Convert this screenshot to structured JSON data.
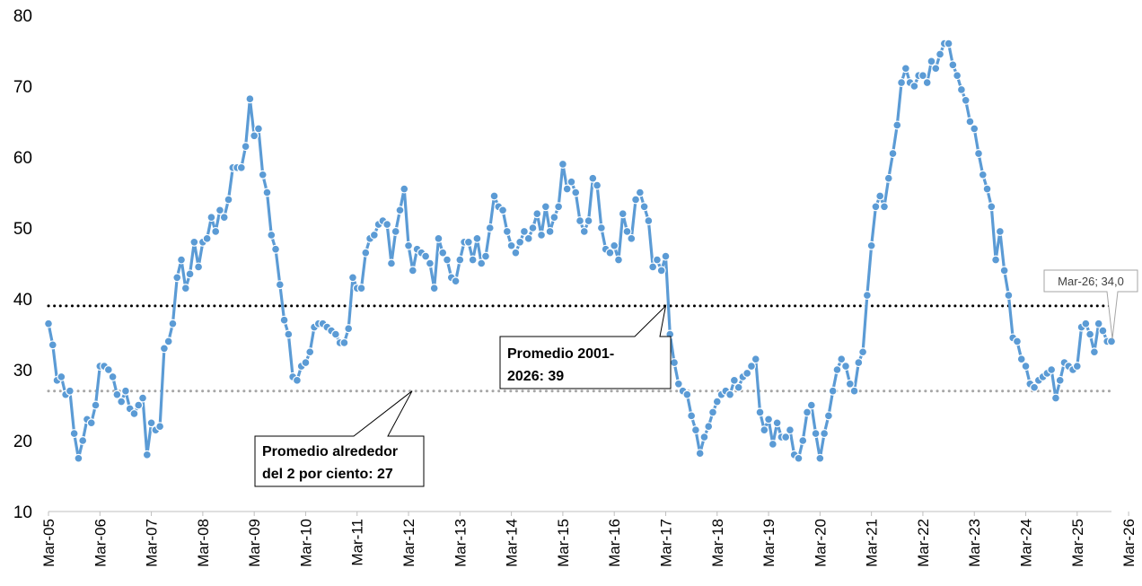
{
  "chart_data": {
    "type": "line",
    "title": "",
    "xlabel": "",
    "ylabel": "",
    "ylim": [
      10,
      80
    ],
    "yticks": [
      10,
      20,
      30,
      40,
      50,
      60,
      70,
      80
    ],
    "x_tick_labels": [
      "Mar-05",
      "Mar-06",
      "Mar-07",
      "Mar-08",
      "Mar-09",
      "Mar-10",
      "Mar-11",
      "Mar-12",
      "Mar-13",
      "Mar-14",
      "Mar-15",
      "Mar-16",
      "Mar-17",
      "Mar-18",
      "Mar-19",
      "Mar-20",
      "Mar-21",
      "Mar-22",
      "Mar-23",
      "Mar-24",
      "Mar-25",
      "Mar-26"
    ],
    "series": [
      {
        "color": "#5b9bd5",
        "values": [
          36.5,
          33.5,
          28.5,
          29,
          26.5,
          27,
          21,
          17.5,
          20,
          23,
          22.5,
          25,
          30.5,
          30.5,
          30,
          29,
          26.5,
          25.5,
          27,
          24.5,
          23.8,
          25,
          26,
          18,
          22.5,
          21.5,
          22,
          33,
          34,
          36.5,
          43,
          45.5,
          41.5,
          43.5,
          48,
          44.5,
          48,
          48.5,
          51.5,
          49.5,
          52.5,
          51.5,
          54,
          58.5,
          58.5,
          58.5,
          61.5,
          68.2,
          63,
          64,
          57.5,
          55,
          49,
          47,
          42,
          37,
          35,
          29,
          28.5,
          30.5,
          31,
          32.5,
          36,
          36.5,
          36.5,
          36,
          35.5,
          35,
          33.8,
          33.8,
          35.8,
          43,
          41.5,
          41.5,
          46.5,
          48.5,
          49,
          50.5,
          51,
          50.5,
          45,
          49.5,
          52.5,
          55.5,
          47.5,
          44,
          47,
          46.5,
          46,
          45,
          41.5,
          48.5,
          46.5,
          45.5,
          43,
          42.5,
          45.5,
          48,
          48,
          45.5,
          48.5,
          45,
          46,
          50,
          54.5,
          53,
          52.5,
          49.5,
          47.5,
          46.5,
          48,
          49.5,
          48.5,
          50,
          52,
          49,
          53,
          49.5,
          51.5,
          53,
          59,
          55.5,
          56.5,
          55,
          51,
          49.5,
          51,
          57,
          56,
          50,
          47,
          46.5,
          47.5,
          45.5,
          52,
          49.5,
          48.5,
          54,
          55,
          53,
          51,
          44.5,
          45.5,
          44,
          46,
          35,
          31,
          28,
          27,
          26.5,
          23.5,
          21.5,
          18.2,
          20.5,
          22,
          24,
          25.5,
          26.5,
          27,
          26.5,
          28.5,
          27.5,
          29,
          29.5,
          30.5,
          31.5,
          24,
          21.5,
          23,
          19.5,
          22.5,
          20.5,
          20.5,
          21.5,
          18,
          17.5,
          20,
          24,
          25,
          21,
          17.5,
          21,
          23.5,
          27,
          30,
          31.5,
          30.5,
          28,
          27,
          31,
          32.5,
          40.5,
          47.5,
          53,
          54.5,
          53,
          57,
          60.5,
          64.5,
          70.5,
          72.5,
          70.5,
          70,
          71.5,
          71.5,
          70.5,
          73.5,
          72.5,
          74.5,
          76,
          76,
          73,
          71.5,
          69.5,
          68,
          65,
          64,
          60.5,
          57.5,
          55.5,
          53,
          45.5,
          49.5,
          44,
          40.5,
          34.5,
          34,
          31.5,
          30.5,
          28,
          27.5,
          28.5,
          29,
          29.5,
          30,
          26,
          28.5,
          31,
          30.5,
          30,
          30.5,
          36,
          36.5,
          35,
          32.5,
          36.5,
          35.5,
          34,
          34
        ]
      }
    ],
    "reference_lines": [
      {
        "value": 39,
        "style": "dotted",
        "color": "#000000",
        "label": "Promedio 2001-2026: 39"
      },
      {
        "value": 27,
        "style": "dotted",
        "color": "#a6a6a6",
        "label": "Promedio alrededor del 2 por ciento: 27"
      }
    ],
    "annotations": [
      {
        "label_lines": [
          "Promedio 2001-",
          "2026: 39"
        ],
        "points_to_x": "Mar-17",
        "points_to_y": 39
      },
      {
        "label_lines": [
          "Promedio alrededor",
          "del 2 por ciento: 27"
        ],
        "points_to_x": "Mar-12",
        "points_to_y": 27
      },
      {
        "label": "Mar-26; 34,0",
        "points_to_x": "Mar-26",
        "points_to_y": 34.0
      }
    ],
    "grid": false,
    "legend": "none"
  }
}
